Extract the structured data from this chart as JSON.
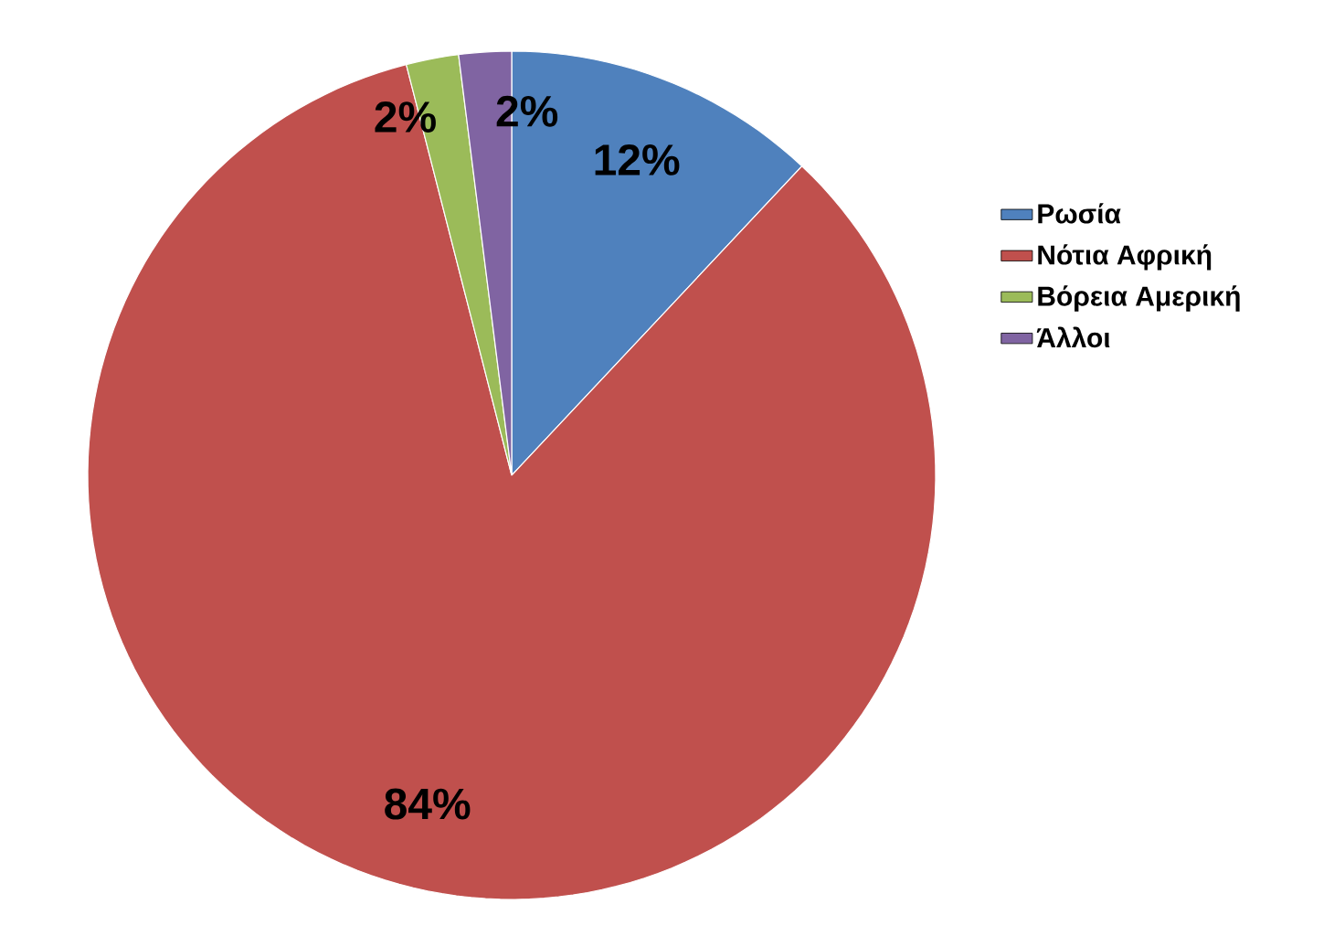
{
  "chart_data": {
    "type": "pie",
    "categories": [
      "Ρωσία",
      "Νότια Αφρική",
      "Βόρεια Αμερική",
      "Άλλοι"
    ],
    "values": [
      12,
      84,
      2,
      2
    ],
    "value_labels": [
      "12%",
      "84%",
      "2%",
      "2%"
    ],
    "colors": [
      "#4f81bd",
      "#c0504d",
      "#9bbb59",
      "#8064a2"
    ],
    "legend": "right"
  }
}
